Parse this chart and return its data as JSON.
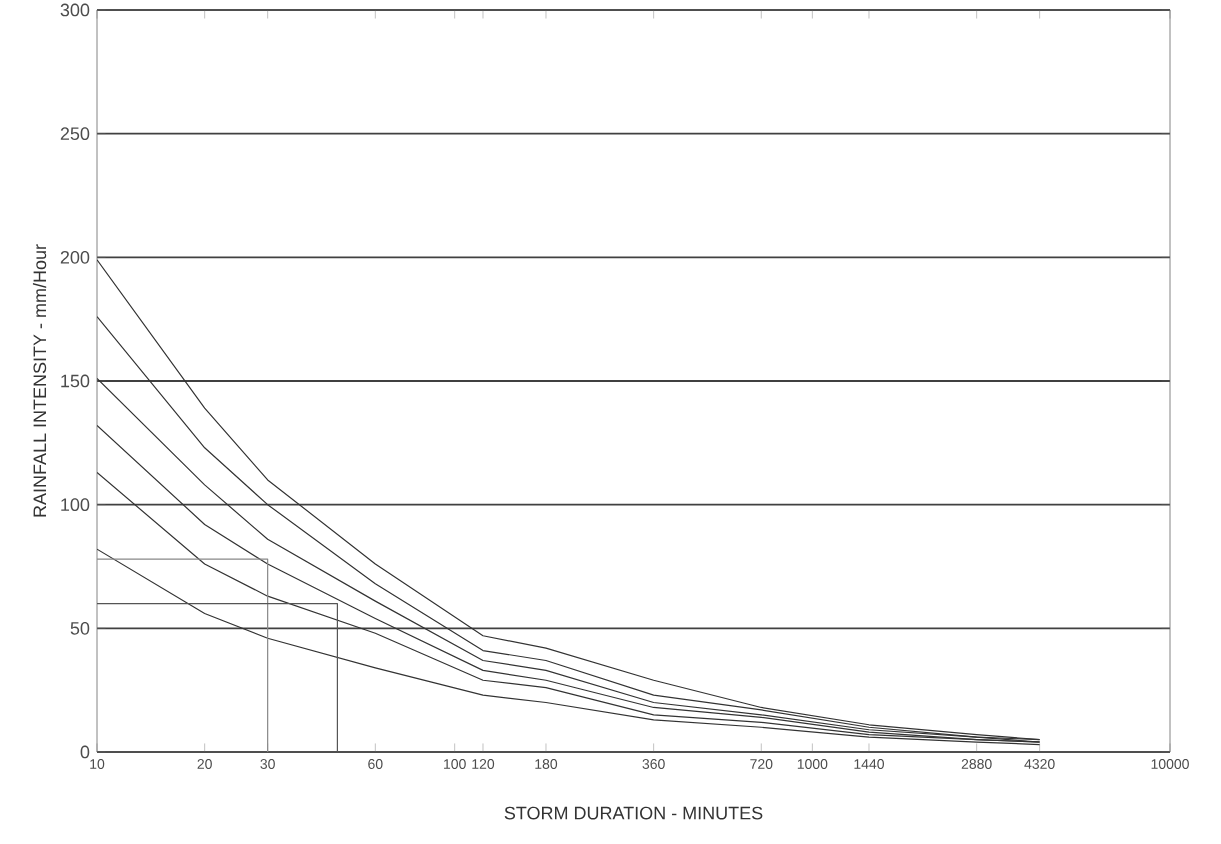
{
  "chart_data": {
    "type": "line",
    "xlabel": "STORM DURATION - MINUTES",
    "ylabel": "RAINFALL INTENSITY - mm/Hour",
    "log": "x",
    "grid": "y",
    "marker": "none",
    "legend": false,
    "xlim": [
      10,
      10000
    ],
    "ylim": [
      0,
      300
    ],
    "xticks": [
      10,
      20,
      30,
      60,
      100,
      120,
      180,
      360,
      720,
      1000,
      1440,
      2880,
      4320,
      10000
    ],
    "yticks": [
      0,
      50,
      100,
      150,
      200,
      250,
      300
    ],
    "x": [
      10,
      20,
      30,
      60,
      120,
      180,
      360,
      720,
      1440,
      2880,
      4320
    ],
    "series": [
      {
        "color": "#333333",
        "values": [
          199,
          139,
          110,
          76,
          47,
          42,
          29,
          18,
          11,
          7,
          5
        ]
      },
      {
        "color": "#333333",
        "values": [
          176,
          123,
          100,
          68,
          41,
          37,
          23,
          17,
          10,
          6,
          5
        ]
      },
      {
        "color": "#333333",
        "values": [
          151,
          108,
          86,
          61,
          37,
          33,
          20,
          15,
          9,
          6,
          4
        ]
      },
      {
        "color": "#333333",
        "values": [
          132,
          92,
          76,
          54,
          33,
          29,
          18,
          14,
          8,
          5,
          4
        ]
      },
      {
        "color": "#333333",
        "values": [
          113,
          76,
          63,
          48,
          29,
          26,
          15,
          12,
          7,
          5,
          4
        ]
      },
      {
        "color": "#333333",
        "values": [
          82,
          56,
          46,
          34,
          23,
          20,
          13,
          10,
          6,
          4,
          3
        ]
      },
      {
        "color": "#888888",
        "x": [
          10,
          30,
          30
        ],
        "values": [
          78,
          78,
          0
        ]
      },
      {
        "color": "#555555",
        "x": [
          10,
          47,
          47
        ],
        "values": [
          60,
          60,
          0
        ]
      }
    ]
  }
}
